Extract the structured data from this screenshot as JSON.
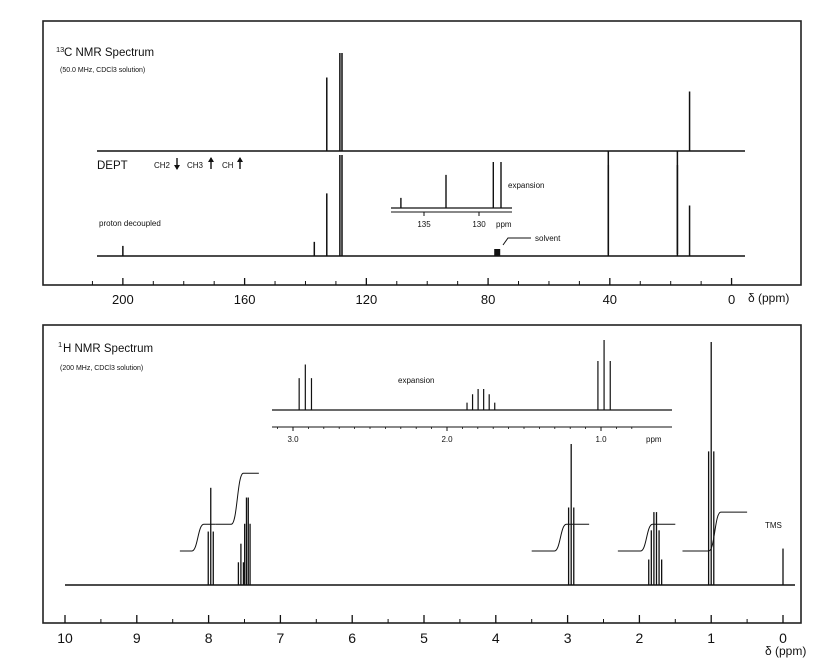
{
  "c13": {
    "title_sup": "13",
    "title_main": "C NMR Spectrum",
    "subtitle": "(50.0 MHz, CDCl3 solution)",
    "dept_label": "DEPT",
    "dept_legend": [
      "CH2",
      "CH3",
      "CH"
    ],
    "proton_label": "proton decoupled",
    "expansion_label": "expansion",
    "expansion_ticks": [
      "135",
      "130",
      "ppm"
    ],
    "solvent_label": "solvent",
    "axis_unit": "δ (ppm)"
  },
  "h1": {
    "title_sup": "1",
    "title_main": "H NMR Spectrum",
    "subtitle": "(200 MHz, CDCl3 solution)",
    "expansion_label": "expansion",
    "expansion_ticks": [
      "3.0",
      "2.0",
      "1.0",
      "ppm"
    ],
    "tms_label": "TMS",
    "axis_unit": "δ (ppm)"
  },
  "chart_data": [
    {
      "type": "line",
      "title": "13C NMR Spectrum",
      "subtitle": "(50.0 MHz, CDCl3 solution)",
      "xlabel": "δ (ppm)",
      "xlim": [
        220,
        -10
      ],
      "x_ticks": [
        200,
        160,
        120,
        80,
        40,
        0
      ],
      "series": [
        {
          "name": "DEPT",
          "peaks": [
            {
              "ppm": 133.0,
              "height": 0.75,
              "dir": "up"
            },
            {
              "ppm": 128.7,
              "height": 1.0,
              "dir": "up"
            },
            {
              "ppm": 128.0,
              "height": 1.0,
              "dir": "up"
            },
            {
              "ppm": 40.5,
              "height": 1.0,
              "dir": "down"
            },
            {
              "ppm": 17.8,
              "height": 1.0,
              "dir": "down"
            },
            {
              "ppm": 13.8,
              "height": 0.85,
              "dir": "up"
            }
          ]
        },
        {
          "name": "proton decoupled",
          "peaks": [
            {
              "ppm": 200.0,
              "height": 0.1
            },
            {
              "ppm": 137.1,
              "height": 0.14
            },
            {
              "ppm": 133.0,
              "height": 0.62
            },
            {
              "ppm": 128.7,
              "height": 1.0
            },
            {
              "ppm": 128.0,
              "height": 1.0
            },
            {
              "ppm": 77.0,
              "height": 0.05
            },
            {
              "ppm": 40.5,
              "height": 0.9
            },
            {
              "ppm": 17.8,
              "height": 0.9
            },
            {
              "ppm": 13.8,
              "height": 0.5
            }
          ]
        }
      ],
      "expansion": {
        "xlim": [
          138,
          127
        ],
        "ticks": [
          135,
          130
        ],
        "peaks": [
          {
            "ppm": 137.1,
            "height": 0.22
          },
          {
            "ppm": 133.0,
            "height": 0.72
          },
          {
            "ppm": 128.7,
            "height": 1.0
          },
          {
            "ppm": 128.0,
            "height": 1.0
          }
        ]
      }
    },
    {
      "type": "line",
      "title": "1H NMR Spectrum",
      "subtitle": "(200 MHz, CDCl3 solution)",
      "xlabel": "δ (ppm)",
      "xlim": [
        10.3,
        -0.2
      ],
      "x_ticks": [
        10,
        9,
        8,
        7,
        6,
        5,
        4,
        3,
        2,
        1,
        0
      ],
      "multiplets": [
        {
          "ppm": 7.97,
          "height": 0.4,
          "lines": 3,
          "spacing": 0.035
        },
        {
          "ppm": 7.55,
          "height": 0.17,
          "lines": 3,
          "spacing": 0.035
        },
        {
          "ppm": 7.46,
          "height": 0.36,
          "lines": 4,
          "spacing": 0.025
        },
        {
          "ppm": 2.95,
          "height": 0.58,
          "lines": 3,
          "spacing": 0.036
        },
        {
          "ppm": 1.78,
          "height": 0.3,
          "lines": 6,
          "spacing": 0.036
        },
        {
          "ppm": 1.0,
          "height": 1.0,
          "lines": 3,
          "spacing": 0.036
        },
        {
          "ppm": 0.0,
          "height": 0.15,
          "lines": 1,
          "spacing": 0
        }
      ],
      "integrals": [
        {
          "from": 8.4,
          "to": 7.9,
          "start": 0.14,
          "end": 0.25
        },
        {
          "from": 7.9,
          "to": 7.3,
          "start": 0.25,
          "end": 0.46
        },
        {
          "from": 3.5,
          "to": 2.7,
          "start": 0.14,
          "end": 0.25
        },
        {
          "from": 2.3,
          "to": 1.5,
          "start": 0.14,
          "end": 0.25
        },
        {
          "from": 1.4,
          "to": 0.5,
          "start": 0.14,
          "end": 0.3
        }
      ],
      "expansion": {
        "xlim": [
          3.2,
          0.6
        ],
        "ticks": [
          3.0,
          2.0,
          1.0
        ],
        "multiplets": [
          {
            "ppm": 2.92,
            "height": 0.65,
            "lines": 3,
            "spacing": 0.04
          },
          {
            "ppm": 1.78,
            "height": 0.3,
            "lines": 6,
            "spacing": 0.036
          },
          {
            "ppm": 0.98,
            "height": 1.0,
            "lines": 3,
            "spacing": 0.04
          }
        ]
      }
    }
  ]
}
